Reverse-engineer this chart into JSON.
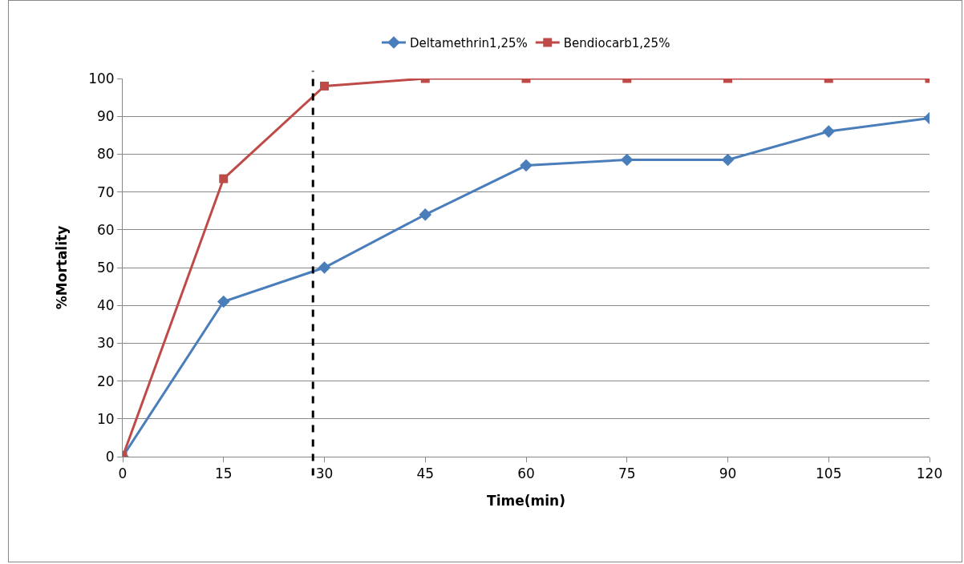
{
  "chart_data": {
    "type": "line",
    "xlabel": "Time(min)",
    "ylabel": "%Mortality",
    "x": [
      0,
      15,
      30,
      45,
      60,
      75,
      90,
      105,
      120
    ],
    "series": [
      {
        "name": "Deltamethrin1,25%",
        "color": "#4a7ebb",
        "marker": "diamond",
        "values": [
          0,
          41,
          50,
          64,
          77,
          78.5,
          78.5,
          86,
          89.5
        ]
      },
      {
        "name": "Bendiocarb1,25%",
        "color": "#be4b48",
        "marker": "square",
        "values": [
          0,
          73.5,
          98,
          100,
          100,
          100,
          100,
          100,
          100
        ]
      }
    ],
    "xlim": [
      0,
      120
    ],
    "xticks": [
      0,
      15,
      30,
      45,
      60,
      75,
      90,
      105,
      120
    ],
    "ylim": [
      0,
      100
    ],
    "yticks": [
      0,
      10,
      20,
      30,
      40,
      50,
      60,
      70,
      80,
      90,
      100
    ],
    "grid": "y",
    "legend": "top",
    "ref_lines": [
      {
        "axis": "x",
        "value": 28.3,
        "color": "#000000",
        "line_style": "dashed"
      }
    ]
  }
}
